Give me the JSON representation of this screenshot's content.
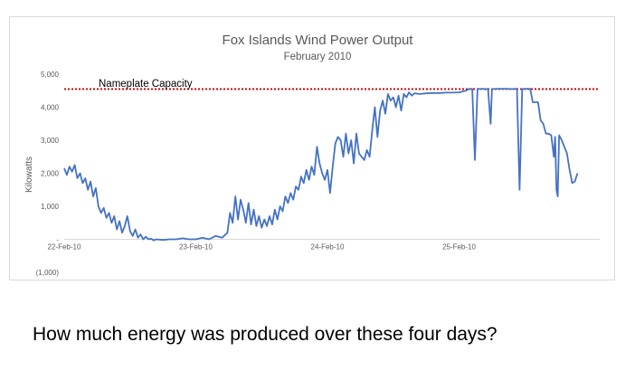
{
  "question": "How much energy was produced over these four days?",
  "chart_data": {
    "type": "line",
    "title": "Fox Islands Wind Power Output",
    "subtitle": "February 2010",
    "xlabel": "",
    "ylabel": "Kilowatts",
    "ylim": [
      -1000,
      5000
    ],
    "xlim": [
      0,
      4
    ],
    "y_ticks": [
      {
        "value": 5000,
        "label": "5,000"
      },
      {
        "value": 4000,
        "label": "4,000"
      },
      {
        "value": 3000,
        "label": "3,000"
      },
      {
        "value": 2000,
        "label": "2,000"
      },
      {
        "value": 1000,
        "label": "1,000"
      },
      {
        "value": 0,
        "label": "-"
      },
      {
        "value": -1000,
        "label": "(1,000)"
      }
    ],
    "x_ticks": [
      {
        "value": 0,
        "label": "22-Feb-10"
      },
      {
        "value": 1,
        "label": "23-Feb-10"
      },
      {
        "value": 2,
        "label": "24-Feb-10"
      },
      {
        "value": 3,
        "label": "25-Feb-10"
      }
    ],
    "grid": false,
    "annotation": {
      "label": "Nameplate Capacity",
      "value": 4550,
      "color": "#c00000"
    },
    "series": [
      {
        "color": "#4472c4",
        "points": [
          [
            0.0,
            2150
          ],
          [
            0.02,
            1950
          ],
          [
            0.04,
            2200
          ],
          [
            0.06,
            2050
          ],
          [
            0.08,
            2250
          ],
          [
            0.1,
            1850
          ],
          [
            0.12,
            2000
          ],
          [
            0.14,
            1700
          ],
          [
            0.16,
            1850
          ],
          [
            0.18,
            1500
          ],
          [
            0.2,
            1750
          ],
          [
            0.22,
            1300
          ],
          [
            0.24,
            1550
          ],
          [
            0.26,
            1000
          ],
          [
            0.28,
            800
          ],
          [
            0.3,
            950
          ],
          [
            0.32,
            650
          ],
          [
            0.34,
            800
          ],
          [
            0.36,
            500
          ],
          [
            0.38,
            700
          ],
          [
            0.4,
            300
          ],
          [
            0.42,
            550
          ],
          [
            0.44,
            200
          ],
          [
            0.46,
            400
          ],
          [
            0.48,
            700
          ],
          [
            0.5,
            250
          ],
          [
            0.52,
            100
          ],
          [
            0.54,
            300
          ],
          [
            0.56,
            50
          ],
          [
            0.58,
            150
          ],
          [
            0.6,
            0
          ],
          [
            0.62,
            80
          ],
          [
            0.64,
            0
          ],
          [
            0.66,
            20
          ],
          [
            0.68,
            -30
          ],
          [
            0.7,
            0
          ],
          [
            0.75,
            -20
          ],
          [
            0.8,
            0
          ],
          [
            0.85,
            0
          ],
          [
            0.9,
            30
          ],
          [
            0.95,
            0
          ],
          [
            1.0,
            0
          ],
          [
            1.05,
            50
          ],
          [
            1.1,
            0
          ],
          [
            1.15,
            100
          ],
          [
            1.2,
            50
          ],
          [
            1.24,
            200
          ],
          [
            1.26,
            800
          ],
          [
            1.28,
            500
          ],
          [
            1.3,
            1300
          ],
          [
            1.32,
            600
          ],
          [
            1.34,
            1200
          ],
          [
            1.36,
            900
          ],
          [
            1.38,
            500
          ],
          [
            1.4,
            1100
          ],
          [
            1.42,
            450
          ],
          [
            1.44,
            900
          ],
          [
            1.46,
            400
          ],
          [
            1.48,
            700
          ],
          [
            1.5,
            350
          ],
          [
            1.52,
            600
          ],
          [
            1.54,
            400
          ],
          [
            1.56,
            700
          ],
          [
            1.58,
            450
          ],
          [
            1.6,
            900
          ],
          [
            1.62,
            600
          ],
          [
            1.64,
            1000
          ],
          [
            1.66,
            850
          ],
          [
            1.68,
            1300
          ],
          [
            1.7,
            1100
          ],
          [
            1.72,
            1400
          ],
          [
            1.74,
            1200
          ],
          [
            1.76,
            1600
          ],
          [
            1.78,
            1500
          ],
          [
            1.8,
            1900
          ],
          [
            1.82,
            1700
          ],
          [
            1.84,
            2100
          ],
          [
            1.86,
            1800
          ],
          [
            1.88,
            2200
          ],
          [
            1.9,
            1950
          ],
          [
            1.92,
            2800
          ],
          [
            1.94,
            2300
          ],
          [
            1.96,
            2000
          ],
          [
            1.98,
            1800
          ],
          [
            2.0,
            2100
          ],
          [
            2.02,
            1400
          ],
          [
            2.04,
            2200
          ],
          [
            2.06,
            2900
          ],
          [
            2.08,
            3100
          ],
          [
            2.1,
            3000
          ],
          [
            2.12,
            2500
          ],
          [
            2.14,
            3200
          ],
          [
            2.16,
            2600
          ],
          [
            2.18,
            3000
          ],
          [
            2.2,
            2300
          ],
          [
            2.22,
            3200
          ],
          [
            2.24,
            2600
          ],
          [
            2.26,
            2500
          ],
          [
            2.28,
            2400
          ],
          [
            2.3,
            2700
          ],
          [
            2.32,
            2500
          ],
          [
            2.34,
            3300
          ],
          [
            2.36,
            4000
          ],
          [
            2.38,
            3100
          ],
          [
            2.4,
            3900
          ],
          [
            2.42,
            4200
          ],
          [
            2.44,
            3800
          ],
          [
            2.46,
            4400
          ],
          [
            2.48,
            4200
          ],
          [
            2.5,
            4300
          ],
          [
            2.52,
            4000
          ],
          [
            2.54,
            4350
          ],
          [
            2.56,
            3900
          ],
          [
            2.58,
            4400
          ],
          [
            2.6,
            4300
          ],
          [
            2.62,
            4450
          ],
          [
            2.64,
            4350
          ],
          [
            2.66,
            4420
          ],
          [
            2.7,
            4400
          ],
          [
            2.75,
            4420
          ],
          [
            2.8,
            4430
          ],
          [
            2.85,
            4430
          ],
          [
            2.9,
            4440
          ],
          [
            2.95,
            4440
          ],
          [
            3.0,
            4450
          ],
          [
            3.05,
            4500
          ],
          [
            3.08,
            4560
          ],
          [
            3.1,
            4550
          ],
          [
            3.12,
            2400
          ],
          [
            3.14,
            4560
          ],
          [
            3.16,
            4550
          ],
          [
            3.18,
            4560
          ],
          [
            3.2,
            4540
          ],
          [
            3.22,
            4560
          ],
          [
            3.24,
            3500
          ],
          [
            3.25,
            4550
          ],
          [
            3.3,
            4560
          ],
          [
            3.35,
            4560
          ],
          [
            3.4,
            4550
          ],
          [
            3.44,
            4560
          ],
          [
            3.46,
            1500
          ],
          [
            3.48,
            4550
          ],
          [
            3.5,
            4560
          ],
          [
            3.52,
            4560
          ],
          [
            3.54,
            4560
          ],
          [
            3.56,
            4150
          ],
          [
            3.58,
            4150
          ],
          [
            3.6,
            4150
          ],
          [
            3.62,
            3600
          ],
          [
            3.64,
            3500
          ],
          [
            3.66,
            3200
          ],
          [
            3.68,
            3200
          ],
          [
            3.7,
            3150
          ],
          [
            3.72,
            2500
          ],
          [
            3.73,
            3100
          ],
          [
            3.74,
            1500
          ],
          [
            3.75,
            1300
          ],
          [
            3.76,
            3150
          ],
          [
            3.78,
            3000
          ],
          [
            3.8,
            2800
          ],
          [
            3.82,
            2600
          ],
          [
            3.84,
            2100
          ],
          [
            3.86,
            1700
          ],
          [
            3.88,
            1750
          ],
          [
            3.9,
            2000
          ]
        ]
      }
    ]
  }
}
